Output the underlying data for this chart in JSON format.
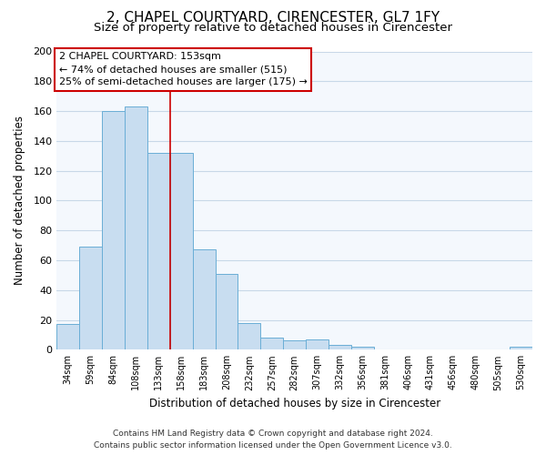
{
  "title": "2, CHAPEL COURTYARD, CIRENCESTER, GL7 1FY",
  "subtitle": "Size of property relative to detached houses in Cirencester",
  "xlabel": "Distribution of detached houses by size in Cirencester",
  "ylabel": "Number of detached properties",
  "bar_labels": [
    "34sqm",
    "59sqm",
    "84sqm",
    "108sqm",
    "133sqm",
    "158sqm",
    "183sqm",
    "208sqm",
    "232sqm",
    "257sqm",
    "282sqm",
    "307sqm",
    "332sqm",
    "356sqm",
    "381sqm",
    "406sqm",
    "431sqm",
    "456sqm",
    "480sqm",
    "505sqm",
    "530sqm"
  ],
  "bar_heights": [
    17,
    69,
    160,
    163,
    132,
    132,
    67,
    51,
    18,
    8,
    6,
    7,
    3,
    2,
    0,
    0,
    0,
    0,
    0,
    0,
    2
  ],
  "bar_color": "#c8ddf0",
  "bar_edge_color": "#6aaed6",
  "property_line_color": "#cc0000",
  "annotation_title": "2 CHAPEL COURTYARD: 153sqm",
  "annotation_line1": "← 74% of detached houses are smaller (515)",
  "annotation_line2": "25% of semi-detached houses are larger (175) →",
  "annotation_box_facecolor": "#ffffff",
  "annotation_box_edgecolor": "#cc0000",
  "ylim": [
    0,
    200
  ],
  "yticks": [
    0,
    20,
    40,
    60,
    80,
    100,
    120,
    140,
    160,
    180,
    200
  ],
  "footer_line1": "Contains HM Land Registry data © Crown copyright and database right 2024.",
  "footer_line2": "Contains public sector information licensed under the Open Government Licence v3.0.",
  "background_color": "#ffffff",
  "plot_background_color": "#f4f8fd",
  "grid_color": "#c8d8e8",
  "title_fontsize": 11,
  "subtitle_fontsize": 9.5
}
